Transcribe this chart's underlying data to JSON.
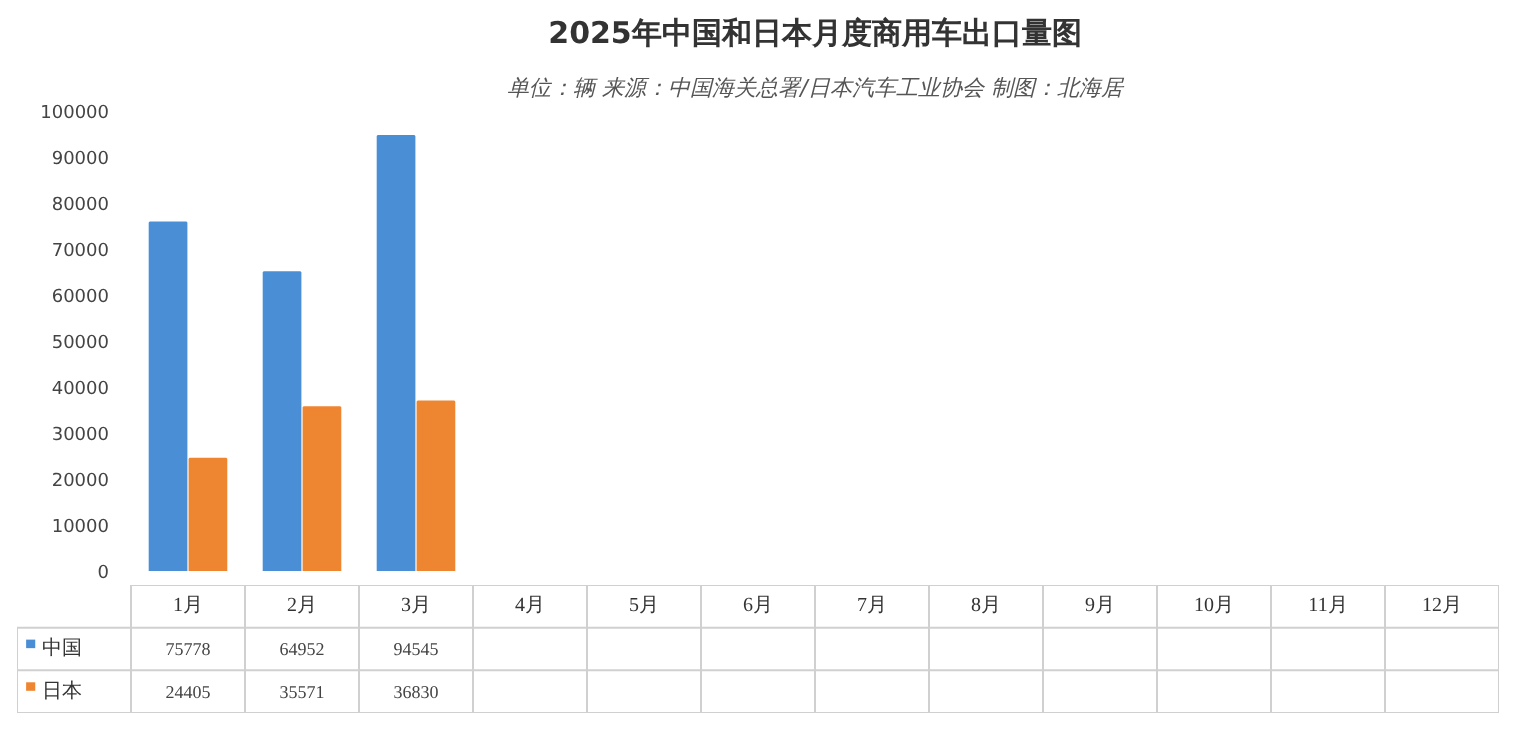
{
  "chart_data": {
    "type": "bar",
    "title": "2025年中国和日本月度商用车出口量图",
    "subtitle": "单位：辆 来源：中国海关总署/日本汽车工业协会 制图：北海居",
    "categories": [
      "1月",
      "2月",
      "3月",
      "4月",
      "5月",
      "6月",
      "7月",
      "8月",
      "9月",
      "10月",
      "11月",
      "12月"
    ],
    "series": [
      {
        "name": "中国",
        "color": "#4a8fd6",
        "values": [
          75778,
          64952,
          94545,
          null,
          null,
          null,
          null,
          null,
          null,
          null,
          null,
          null
        ]
      },
      {
        "name": "日本",
        "color": "#ee8530",
        "values": [
          24405,
          35571,
          36830,
          null,
          null,
          null,
          null,
          null,
          null,
          null,
          null,
          null
        ]
      }
    ],
    "ylim": [
      0,
      100000
    ],
    "yticks": [
      0,
      10000,
      20000,
      30000,
      40000,
      50000,
      60000,
      70000,
      80000,
      90000,
      100000
    ],
    "data_labels": true,
    "legend": "bottom"
  }
}
